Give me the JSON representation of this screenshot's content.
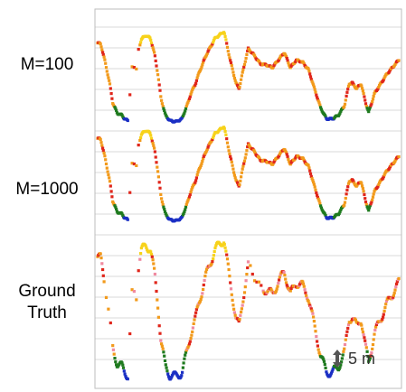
{
  "chart_data": {
    "type": "scatter",
    "rows": [
      {
        "label": "M=100"
      },
      {
        "label": "M=1000"
      },
      {
        "label": "Ground\nTruth"
      }
    ],
    "scale_label": "5 m",
    "grid": true,
    "colors": {
      "green": "#1f7a1f",
      "orange": "#f29a1b",
      "yellow": "#f7d21a",
      "red": "#e0261b",
      "blue": "#1a2fc4",
      "pink": "#f08aa0"
    },
    "profile_x": [
      0,
      0.01,
      0.025,
      0.04,
      0.05,
      0.065,
      0.08,
      0.09,
      0.1,
      0.115,
      0.13,
      0.135,
      0.145,
      0.16,
      0.175,
      0.19,
      0.2,
      0.21,
      0.225,
      0.24,
      0.26,
      0.28,
      0.3,
      0.31,
      0.325,
      0.335,
      0.36,
      0.39,
      0.42,
      0.44,
      0.46,
      0.47,
      0.48,
      0.5,
      0.52,
      0.54,
      0.56,
      0.58,
      0.6,
      0.62,
      0.64,
      0.66,
      0.68,
      0.7,
      0.72,
      0.74,
      0.76,
      0.78,
      0.8,
      0.82,
      0.835,
      0.845,
      0.86,
      0.875,
      0.89,
      0.9,
      0.92,
      0.94,
      0.96,
      1.0
    ],
    "profile_y": [
      0.88,
      0.87,
      0.68,
      0.45,
      0.25,
      0.14,
      0.12,
      0.08,
      0.06,
      0.65,
      0.6,
      0.8,
      0.92,
      0.96,
      0.93,
      0.75,
      0.55,
      0.3,
      0.12,
      0.06,
      0.05,
      0.08,
      0.25,
      0.35,
      0.45,
      0.55,
      0.75,
      0.93,
      1.0,
      0.7,
      0.45,
      0.4,
      0.55,
      0.82,
      0.75,
      0.66,
      0.65,
      0.62,
      0.7,
      0.78,
      0.62,
      0.7,
      0.68,
      0.6,
      0.4,
      0.2,
      0.08,
      0.08,
      0.12,
      0.22,
      0.45,
      0.46,
      0.4,
      0.45,
      0.25,
      0.15,
      0.35,
      0.45,
      0.55,
      0.7
    ]
  }
}
